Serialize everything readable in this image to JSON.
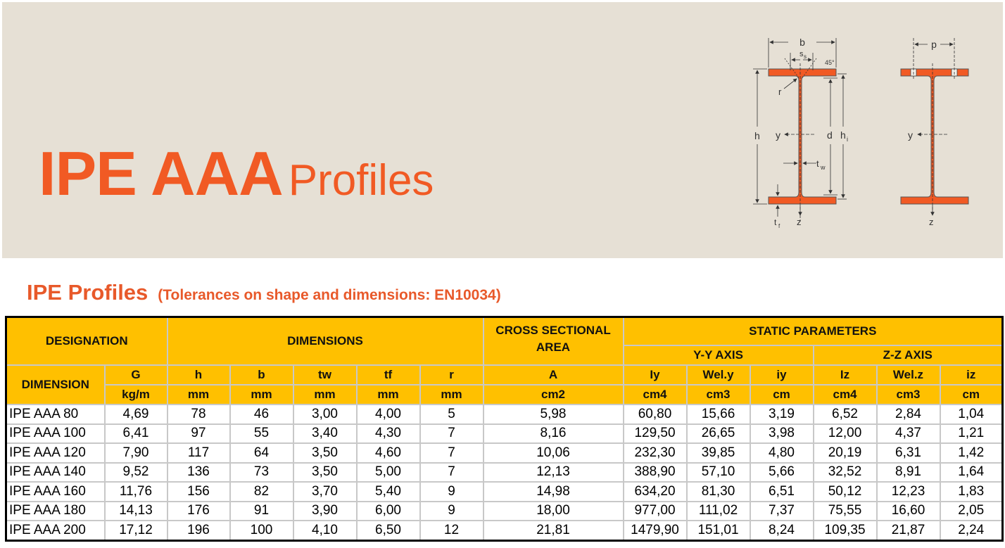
{
  "banner": {
    "title_bold": "IPE AAA",
    "title_light": "Profiles",
    "background_color": "#e6e0d5",
    "accent_color": "#f15a24"
  },
  "diagram_left": {
    "labels": {
      "b": "b",
      "ss": "s",
      "ss_sub": "s",
      "angle": "45°",
      "r": "r",
      "h": "h",
      "y": "y",
      "d": "d",
      "hi": "h",
      "hi_sub": "i",
      "tw": "t",
      "tw_sub": "w",
      "tf": "t",
      "tf_sub": "f",
      "z": "z"
    }
  },
  "diagram_right": {
    "labels": {
      "p": "p",
      "y": "y",
      "z": "z"
    }
  },
  "section": {
    "title": "IPE Profiles",
    "note": "(Tolerances on shape and dimensions: EN10034)"
  },
  "table": {
    "header_color": "#ffc000",
    "groups": {
      "designation": "DESIGNATION",
      "dimensions": "DIMENSIONS",
      "area": "CROSS SECTIONAL AREA",
      "static": "STATIC PARAMETERS",
      "yy": "Y-Y AXIS",
      "zz": "Z-Z AXIS",
      "dimension": "DIMENSION"
    },
    "symbols": [
      "G",
      "h",
      "b",
      "tw",
      "tf",
      "r",
      "A",
      "Iy",
      "Wel.y",
      "iy",
      "Iz",
      "Wel.z",
      "iz"
    ],
    "units": [
      "kg/m",
      "mm",
      "mm",
      "mm",
      "mm",
      "mm",
      "cm2",
      "cm4",
      "cm3",
      "cm",
      "cm4",
      "cm3",
      "cm"
    ],
    "rows": [
      [
        "IPE AAA 80",
        "4,69",
        "78",
        "46",
        "3,00",
        "4,00",
        "5",
        "5,98",
        "60,80",
        "15,66",
        "3,19",
        "6,52",
        "2,84",
        "1,04"
      ],
      [
        "IPE AAA 100",
        "6,41",
        "97",
        "55",
        "3,40",
        "4,30",
        "7",
        "8,16",
        "129,50",
        "26,65",
        "3,98",
        "12,00",
        "4,37",
        "1,21"
      ],
      [
        "IPE AAA 120",
        "7,90",
        "117",
        "64",
        "3,50",
        "4,60",
        "7",
        "10,06",
        "232,30",
        "39,85",
        "4,80",
        "20,19",
        "6,31",
        "1,42"
      ],
      [
        "IPE AAA 140",
        "9,52",
        "136",
        "73",
        "3,50",
        "5,00",
        "7",
        "12,13",
        "388,90",
        "57,10",
        "5,66",
        "32,52",
        "8,91",
        "1,64"
      ],
      [
        "IPE AAA 160",
        "11,76",
        "156",
        "82",
        "3,70",
        "5,40",
        "9",
        "14,98",
        "634,20",
        "81,30",
        "6,51",
        "50,12",
        "12,23",
        "1,83"
      ],
      [
        "IPE AAA 180",
        "14,13",
        "176",
        "91",
        "3,90",
        "6,00",
        "9",
        "18,00",
        "977,00",
        "111,02",
        "7,37",
        "75,55",
        "16,60",
        "2,05"
      ],
      [
        "IPE AAA 200",
        "17,12",
        "196",
        "100",
        "4,10",
        "6,50",
        "12",
        "21,81",
        "1479,90",
        "151,01",
        "8,24",
        "109,35",
        "21,87",
        "2,24"
      ]
    ]
  }
}
